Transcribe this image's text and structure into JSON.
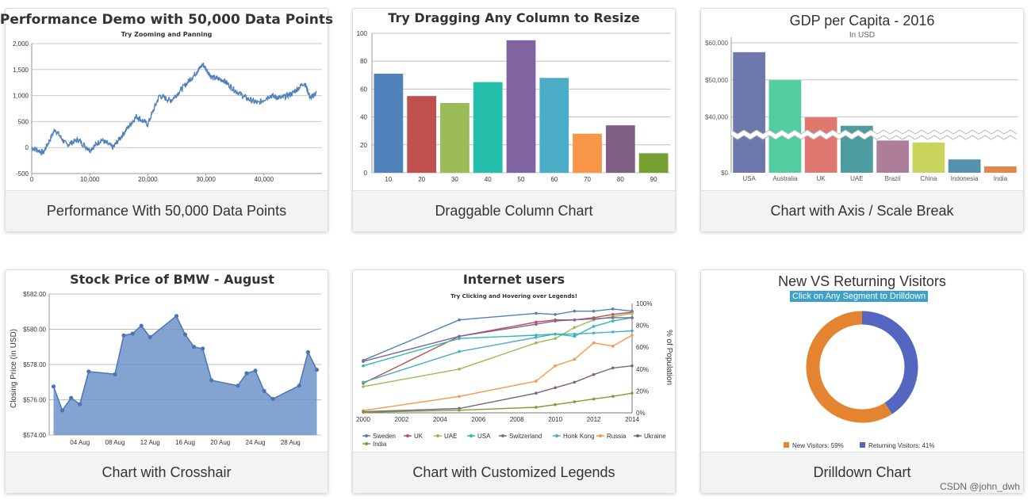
{
  "cards": [
    {
      "footer": "Performance With 50,000 Data Points"
    },
    {
      "footer": "Draggable Column Chart"
    },
    {
      "footer": "Chart with Axis / Scale Break"
    },
    {
      "footer": "Chart with Crosshair"
    },
    {
      "footer": "Chart with Customized Legends"
    },
    {
      "footer": "Drilldown Chart"
    }
  ],
  "watermark": "CSDN @john_dwh",
  "chart_data": [
    {
      "type": "line",
      "title": "Performance Demo with 50,000 Data Points",
      "subtitle": "Try Zooming and Panning",
      "color": "#4f81bc",
      "xlim": [
        0,
        50000
      ],
      "ylim": [
        -500,
        2000
      ],
      "x_ticks": [
        0,
        10000,
        20000,
        30000,
        40000
      ],
      "x_tick_labels": [
        "0",
        "10,000",
        "20,000",
        "30,000",
        "40,000"
      ],
      "y_ticks": [
        -500,
        0,
        500,
        1000,
        1500,
        2000
      ],
      "y_tick_labels": [
        "-500",
        "0",
        "500",
        "1,000",
        "1,500",
        "2,000"
      ],
      "x": [
        0,
        2000,
        4000,
        6000,
        8000,
        10000,
        12000,
        14000,
        16000,
        18000,
        20000,
        22000,
        24000,
        26000,
        28000,
        29500,
        31000,
        33000,
        35000,
        37000,
        39000,
        41000,
        43000,
        45000,
        47000,
        48000,
        49000
      ],
      "y": [
        0,
        -100,
        350,
        50,
        150,
        -50,
        150,
        0,
        300,
        600,
        450,
        1000,
        900,
        1150,
        1400,
        1600,
        1350,
        1300,
        1100,
        950,
        850,
        1000,
        950,
        1050,
        1250,
        950,
        1050
      ]
    },
    {
      "type": "bar",
      "title": "Try Dragging Any Column to Resize",
      "categories": [
        "10",
        "20",
        "30",
        "40",
        "50",
        "60",
        "70",
        "80",
        "90"
      ],
      "values": [
        71,
        55,
        50,
        65,
        95,
        68,
        28,
        34,
        14
      ],
      "colors": [
        "#4f81bc",
        "#c0504e",
        "#9bbb58",
        "#23bfaa",
        "#8064a1",
        "#4aacc5",
        "#f79647",
        "#7f6084",
        "#77a033"
      ],
      "ylim": [
        0,
        100
      ],
      "y_ticks": [
        0,
        20,
        40,
        60,
        80,
        100
      ]
    },
    {
      "type": "bar",
      "title": "GDP per Capita - 2016",
      "subtitle": "In USD",
      "categories": [
        "USA",
        "Australia",
        "UK",
        "UAE",
        "Brazil",
        "China",
        "Indonesia",
        "India"
      ],
      "values": [
        57466,
        49927,
        39899,
        37622,
        8650,
        8123,
        3570,
        1709
      ],
      "colors": [
        "#6d78ad",
        "#51cda0",
        "#df7970",
        "#4c9ca0",
        "#ae7d99",
        "#c9d45c",
        "#5592ad",
        "#df874d"
      ],
      "y_tick_labels": [
        "$0",
        "$40,000",
        "$50,000",
        "$60,000"
      ],
      "scale_break": [
        10000,
        35000
      ]
    },
    {
      "type": "area",
      "title": "Stock Price of BMW - August",
      "ylabel": "Closing Price (in USD)",
      "color": "#6d94c9",
      "xlim": [
        0.5,
        31.5
      ],
      "ylim": [
        574,
        582
      ],
      "y_ticks": [
        574,
        576,
        578,
        580,
        582
      ],
      "y_tick_labels": [
        "$574.00",
        "$576.00",
        "$578.00",
        "$580.00",
        "$582.00"
      ],
      "x_ticks": [
        4,
        8,
        12,
        16,
        20,
        24,
        28
      ],
      "x_tick_labels": [
        "04 Aug",
        "08 Aug",
        "12 Aug",
        "16 Aug",
        "20 Aug",
        "24 Aug",
        "28 Aug"
      ],
      "x": [
        1,
        2,
        3,
        4,
        5,
        8,
        9,
        10,
        11,
        12,
        15,
        16,
        17,
        18,
        19,
        22,
        23,
        24,
        25,
        26,
        29,
        30,
        31
      ],
      "y": [
        576.75,
        575.4,
        576.1,
        575.75,
        577.6,
        577.45,
        579.65,
        579.75,
        580.2,
        579.55,
        580.75,
        579.7,
        579.0,
        578.9,
        577.1,
        576.8,
        577.5,
        577.65,
        576.5,
        576.05,
        576.8,
        578.7,
        577.7
      ]
    },
    {
      "type": "line",
      "title": "Internet users",
      "subtitle": "Try Clicking and Hovering over Legends!",
      "ylabel": "% of Population",
      "xlim": [
        2000,
        2014
      ],
      "ylim": [
        0,
        100
      ],
      "x_ticks": [
        2000,
        2002,
        2004,
        2006,
        2008,
        2010,
        2012,
        2014
      ],
      "y_ticks": [
        0,
        20,
        40,
        60,
        80,
        100
      ],
      "y_tick_labels": [
        "0%",
        "20%",
        "40%",
        "60%",
        "80%",
        "100%"
      ],
      "x": [
        2000,
        2005,
        2009,
        2010,
        2011,
        2012,
        2013,
        2014
      ],
      "series": [
        {
          "name": "Sweden",
          "color": "#4f81bc",
          "values": [
            48,
            85,
            91,
            90,
            93,
            93,
            95,
            93
          ]
        },
        {
          "name": "UK",
          "color": "#c0504e",
          "values": [
            27,
            70,
            83,
            85,
            85,
            87,
            90,
            92
          ]
        },
        {
          "name": "UAE",
          "color": "#9bbb58",
          "values": [
            24,
            40,
            64,
            68,
            78,
            85,
            88,
            91
          ]
        },
        {
          "name": "USA",
          "color": "#23bfaa",
          "values": [
            43,
            68,
            71,
            72,
            70,
            79,
            84,
            87
          ]
        },
        {
          "name": "Switzerland",
          "color": "#8064a1",
          "values": [
            47,
            70,
            81,
            84,
            85,
            86,
            87,
            87
          ]
        },
        {
          "name": "Honk Kong",
          "color": "#4aacc5",
          "values": [
            28,
            56,
            69,
            72,
            72,
            73,
            74,
            75
          ]
        },
        {
          "name": "Russia",
          "color": "#f79647",
          "values": [
            2,
            15,
            29,
            43,
            49,
            64,
            61,
            71
          ]
        },
        {
          "name": "Ukraine",
          "color": "#7f6084",
          "values": [
            1,
            4,
            18,
            23,
            28,
            35,
            41,
            43
          ]
        },
        {
          "name": "India",
          "color": "#77a033",
          "values": [
            0.5,
            2.4,
            5.1,
            7.5,
            10.1,
            12.6,
            15.1,
            18
          ]
        }
      ]
    },
    {
      "type": "pie",
      "title": "New VS Returning Visitors",
      "button": "Click on Any Segment to Drilldown",
      "slices": [
        {
          "name": "New Visitors",
          "value": 59,
          "color": "#e58430",
          "legend": "New Visitors: 59%"
        },
        {
          "name": "Returning Visitors",
          "value": 41,
          "color": "#5466c0",
          "legend": "Returning Visitors: 41%"
        }
      ]
    }
  ]
}
